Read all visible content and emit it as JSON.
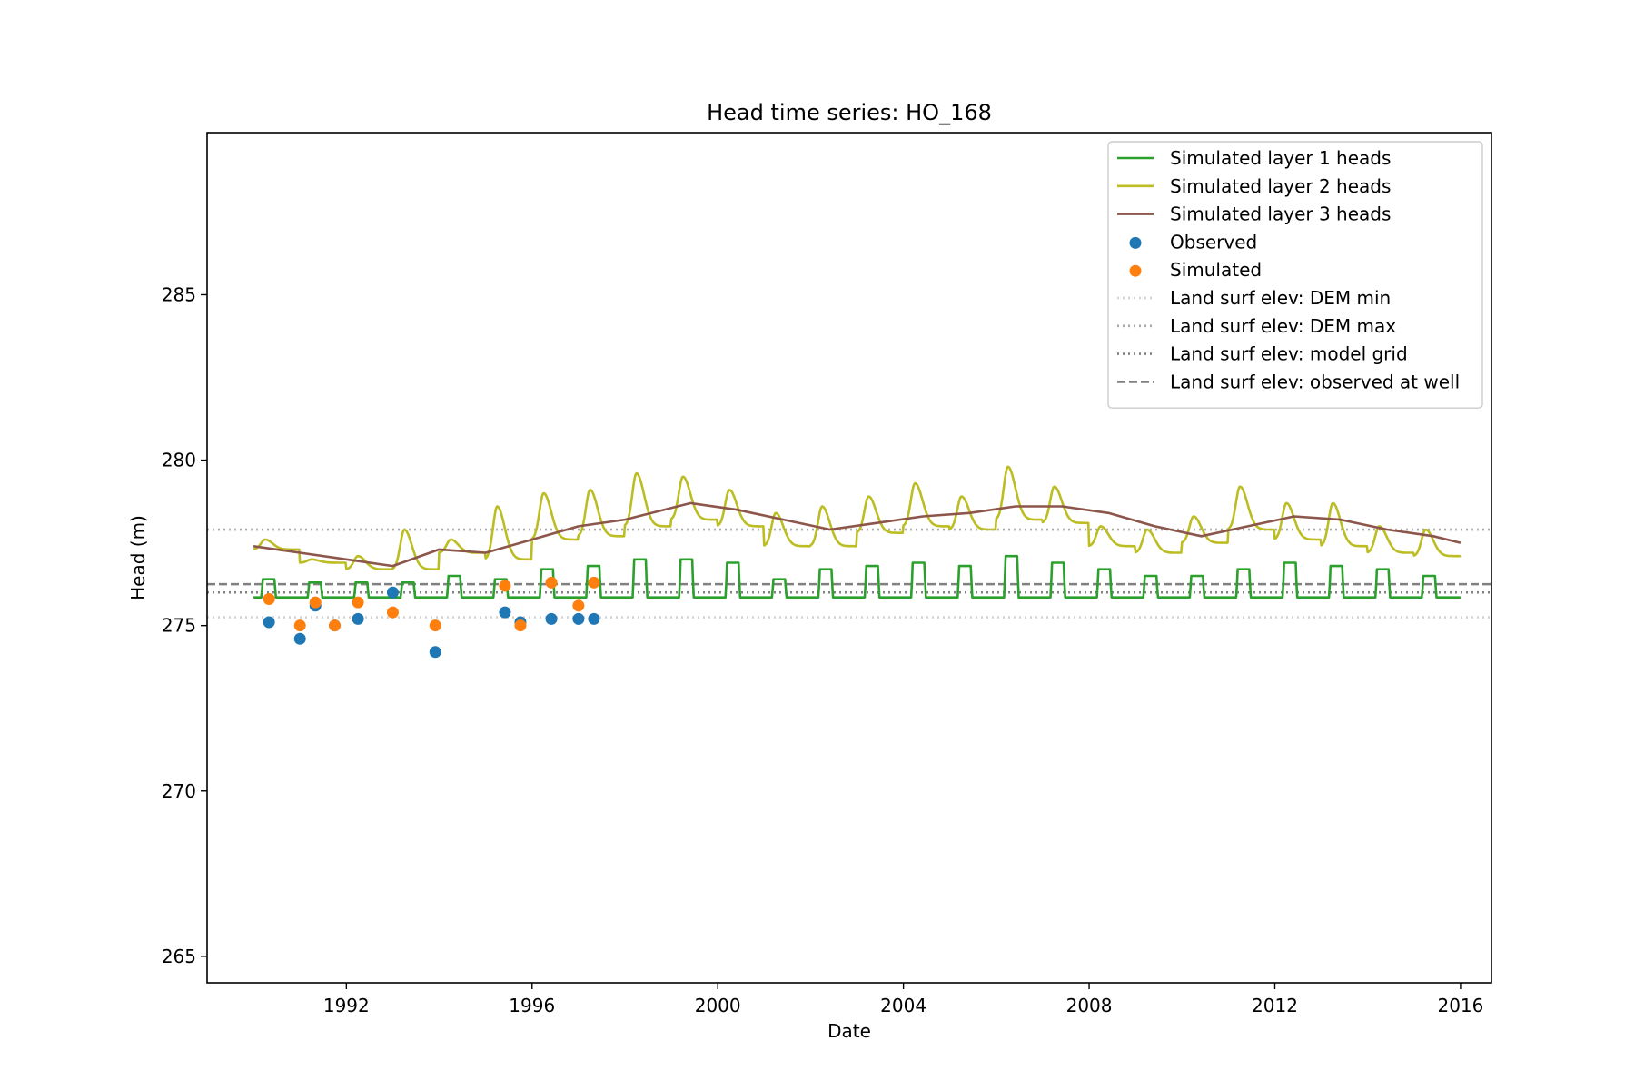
{
  "chart_data": {
    "type": "line",
    "title": "Head time series: HO_168",
    "xlabel": "Date",
    "ylabel": "Head (m)",
    "xlim": [
      "1989-01-01",
      "2016-09-01"
    ],
    "ylim": [
      264.2,
      289.9
    ],
    "x_ticks": [
      "1992",
      "1996",
      "2000",
      "2004",
      "2008",
      "2012",
      "2016"
    ],
    "y_ticks": [
      265,
      270,
      275,
      280,
      285
    ],
    "grid": false,
    "legend_position": "top-right",
    "colors": {
      "layer1": "#2ca02c",
      "layer2": "#bcbd22",
      "layer3": "#8c564b",
      "observed": "#1f77b4",
      "simulated": "#ff7f0e",
      "dem_min": "#d3d3d3",
      "dem_max": "#a9a9a9",
      "model_grid": "#808080",
      "observed_at_well": "#808080"
    },
    "series": [
      {
        "name": "Simulated layer 1 heads",
        "kind": "line",
        "pattern": "seasonal",
        "start": "1990-01-01",
        "end": "2016-01-01",
        "base": 275.85,
        "peak_month": 3.5,
        "peaks": [
          276.4,
          276.3,
          276.3,
          276.3,
          276.5,
          276.4,
          276.7,
          276.8,
          277.0,
          277.0,
          276.9,
          276.4,
          276.7,
          276.8,
          276.9,
          276.8,
          277.1,
          276.9,
          276.7,
          276.5,
          276.5,
          276.7,
          276.9,
          276.8,
          276.7,
          276.5
        ]
      },
      {
        "name": "Simulated layer 2 heads",
        "kind": "line",
        "pattern": "seasonal",
        "start": "1990-01-01",
        "end": "2016-01-01",
        "trough": [
          277.3,
          276.9,
          276.7,
          276.7,
          277.2,
          277.0,
          277.6,
          277.7,
          278.0,
          278.2,
          278.0,
          277.4,
          277.4,
          277.8,
          278.0,
          277.9,
          278.2,
          278.1,
          277.4,
          277.2,
          277.5,
          277.9,
          277.6,
          277.4,
          277.2,
          277.1,
          277.3
        ],
        "peak_month": 3.0,
        "peaks": [
          277.6,
          277.0,
          277.1,
          277.9,
          277.6,
          278.6,
          279.0,
          279.1,
          279.6,
          279.5,
          279.1,
          278.4,
          278.6,
          278.9,
          279.3,
          278.9,
          279.8,
          279.2,
          278.0,
          277.9,
          278.3,
          279.2,
          278.7,
          278.7,
          278.0,
          277.9
        ]
      },
      {
        "name": "Simulated layer 3 heads",
        "kind": "line",
        "pattern": "smooth",
        "x": [
          "1990-01-01",
          "1991-01-01",
          "1992-01-01",
          "1993-01-01",
          "1994-01-01",
          "1995-01-01",
          "1996-01-01",
          "1997-01-01",
          "1998-01-01",
          "1999-06-01",
          "2000-06-01",
          "2001-06-01",
          "2002-06-01",
          "2003-06-01",
          "2004-06-01",
          "2005-06-01",
          "2006-06-01",
          "2007-06-01",
          "2008-06-01",
          "2009-06-01",
          "2010-06-01",
          "2011-06-01",
          "2012-06-01",
          "2013-06-01",
          "2014-06-01",
          "2015-06-01",
          "2016-01-01"
        ],
        "y": [
          277.4,
          277.2,
          277.0,
          276.8,
          277.3,
          277.2,
          277.6,
          278.0,
          278.2,
          278.7,
          278.5,
          278.2,
          277.9,
          278.1,
          278.3,
          278.4,
          278.6,
          278.6,
          278.4,
          278.0,
          277.7,
          278.0,
          278.3,
          278.2,
          277.9,
          277.7,
          277.5
        ]
      },
      {
        "name": "Observed",
        "kind": "scatter",
        "x": [
          "1990-05-01",
          "1991-01-01",
          "1991-05-01",
          "1991-10-01",
          "1992-04-01",
          "1993-01-01",
          "1993-12-01",
          "1995-06-01",
          "1995-10-01",
          "1996-06-01",
          "1997-01-01",
          "1997-05-01"
        ],
        "y": [
          275.1,
          274.6,
          275.6,
          275.0,
          275.2,
          276.0,
          274.2,
          275.4,
          275.1,
          275.2,
          275.2,
          275.2
        ]
      },
      {
        "name": "Simulated",
        "kind": "scatter",
        "x": [
          "1990-05-01",
          "1991-01-01",
          "1991-05-01",
          "1991-10-01",
          "1992-04-01",
          "1993-01-01",
          "1993-12-01",
          "1995-06-01",
          "1995-10-01",
          "1996-06-01",
          "1997-01-01",
          "1997-05-01"
        ],
        "y": [
          275.8,
          275.0,
          275.7,
          275.0,
          275.7,
          275.4,
          275.0,
          276.2,
          275.0,
          276.3,
          275.6,
          276.3
        ]
      },
      {
        "name": "Land surf elev: DEM min",
        "kind": "hline",
        "y": 275.25
      },
      {
        "name": "Land surf elev: DEM max",
        "kind": "hline",
        "y": 277.9
      },
      {
        "name": "Land surf elev: model grid",
        "kind": "hline",
        "y": 276.0
      },
      {
        "name": "Land surf elev: observed at well",
        "kind": "hline",
        "y": 276.25
      }
    ]
  }
}
